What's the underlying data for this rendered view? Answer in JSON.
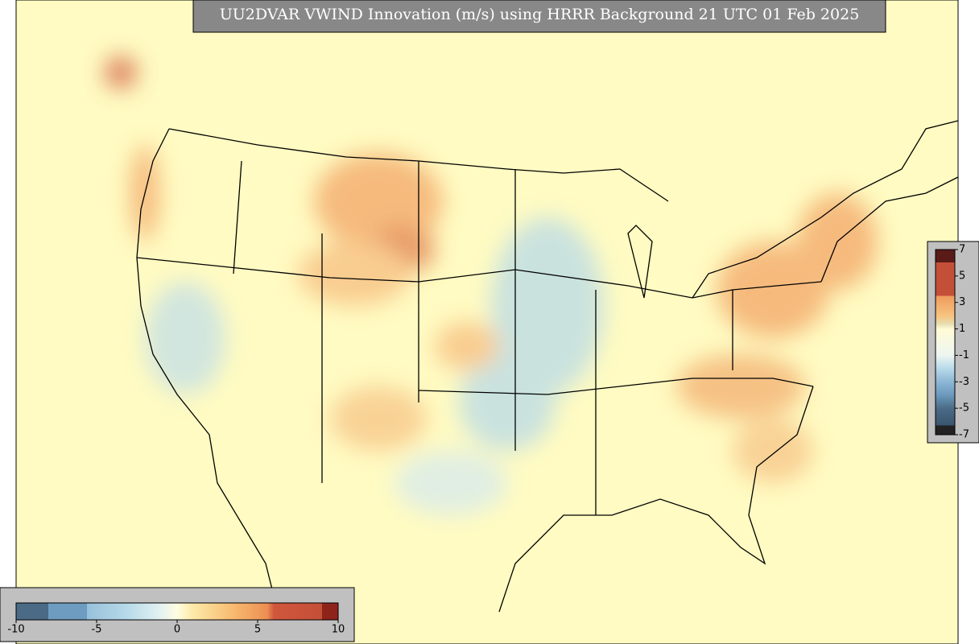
{
  "title": "UU2DVAR VWIND Innovation (m/s) using HRRR Background 21 UTC 01 Feb 2025",
  "colorbars": [
    {
      "orientation": "vertical",
      "lim": [
        -7,
        7
      ],
      "ticks": [
        7,
        5,
        3,
        1,
        -1,
        -3,
        -5,
        -7
      ]
    },
    {
      "orientation": "horizontal",
      "lim": [
        -10,
        10
      ],
      "ticks": [
        -10,
        -5,
        0,
        5,
        10
      ]
    }
  ]
}
